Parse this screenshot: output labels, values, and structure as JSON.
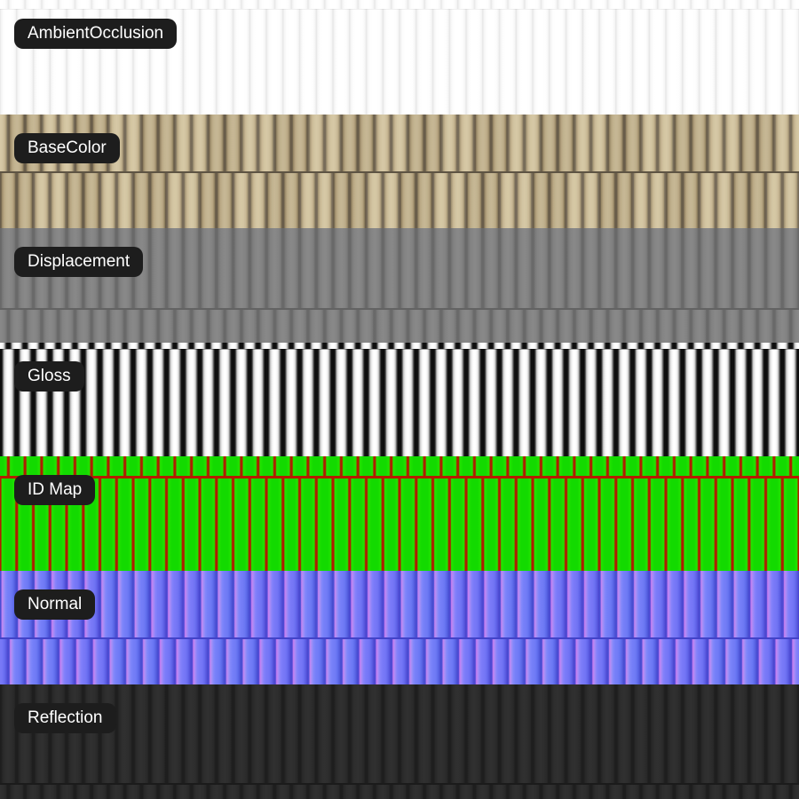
{
  "bands": [
    {
      "id": "ambient-occlusion",
      "label": "AmbientOcclusion",
      "base_color": "#ffffff"
    },
    {
      "id": "base-color",
      "label": "BaseColor",
      "base_color": "#c9ba97"
    },
    {
      "id": "displacement",
      "label": "Displacement",
      "base_color": "#808080"
    },
    {
      "id": "gloss",
      "label": "Gloss",
      "base_color": "#f2f2f2"
    },
    {
      "id": "id-map",
      "label": "ID Map",
      "base_color": "#14dc00",
      "grid_color": "#b51d00"
    },
    {
      "id": "normal",
      "label": "Normal",
      "base_color": "#7478f8"
    },
    {
      "id": "reflection",
      "label": "Reflection",
      "base_color": "#2d2d2d"
    }
  ],
  "label_pill": {
    "background": "#1d1d1d",
    "text_color": "#ffffff"
  }
}
